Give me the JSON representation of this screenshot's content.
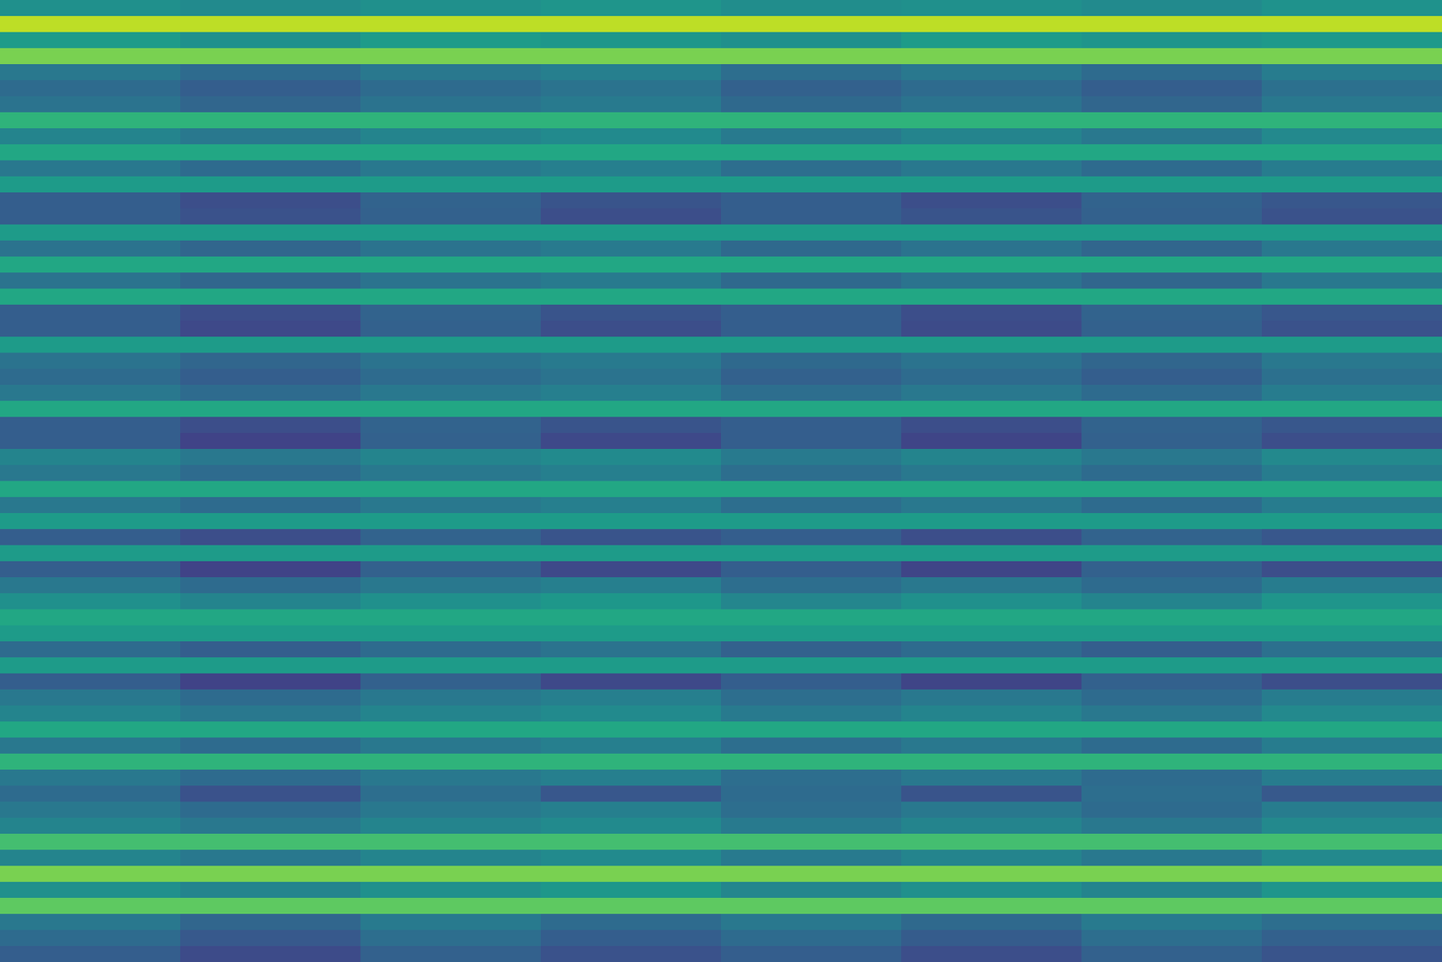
{
  "chart_data": {
    "type": "heatmap",
    "color": "viridis",
    "tick_labels": false,
    "cell_range": [
      0,
      1
    ],
    "cells": [
      [
        0.5,
        0.48,
        0.5,
        0.52,
        0.49,
        0.5,
        0.48,
        0.51
      ],
      [
        0.9,
        0.9,
        0.9,
        0.9,
        0.9,
        0.9,
        0.9,
        0.9
      ],
      [
        0.55,
        0.5,
        0.55,
        0.53,
        0.5,
        0.55,
        0.52,
        0.54
      ],
      [
        0.8,
        0.8,
        0.8,
        0.8,
        0.8,
        0.8,
        0.8,
        0.8
      ],
      [
        0.4,
        0.35,
        0.4,
        0.43,
        0.36,
        0.4,
        0.35,
        0.42
      ],
      [
        0.35,
        0.3,
        0.35,
        0.38,
        0.31,
        0.35,
        0.3,
        0.37
      ],
      [
        0.38,
        0.33,
        0.38,
        0.41,
        0.34,
        0.38,
        0.33,
        0.4
      ],
      [
        0.65,
        0.65,
        0.65,
        0.65,
        0.65,
        0.65,
        0.65,
        0.65
      ],
      [
        0.45,
        0.4,
        0.45,
        0.48,
        0.41,
        0.45,
        0.4,
        0.47
      ],
      [
        0.6,
        0.6,
        0.6,
        0.6,
        0.6,
        0.6,
        0.6,
        0.6
      ],
      [
        0.4,
        0.35,
        0.4,
        0.43,
        0.36,
        0.4,
        0.35,
        0.42
      ],
      [
        0.55,
        0.55,
        0.55,
        0.55,
        0.55,
        0.55,
        0.55,
        0.55
      ],
      [
        0.3,
        0.24,
        0.32,
        0.26,
        0.3,
        0.24,
        0.32,
        0.27
      ],
      [
        0.3,
        0.25,
        0.31,
        0.24,
        0.3,
        0.26,
        0.31,
        0.25
      ],
      [
        0.55,
        0.55,
        0.55,
        0.55,
        0.55,
        0.55,
        0.55,
        0.55
      ],
      [
        0.38,
        0.33,
        0.38,
        0.41,
        0.34,
        0.38,
        0.33,
        0.4
      ],
      [
        0.6,
        0.6,
        0.6,
        0.6,
        0.6,
        0.6,
        0.6,
        0.6
      ],
      [
        0.38,
        0.33,
        0.38,
        0.41,
        0.34,
        0.38,
        0.33,
        0.4
      ],
      [
        0.6,
        0.6,
        0.6,
        0.6,
        0.6,
        0.6,
        0.6,
        0.6
      ],
      [
        0.3,
        0.24,
        0.32,
        0.26,
        0.3,
        0.24,
        0.32,
        0.27
      ],
      [
        0.3,
        0.22,
        0.31,
        0.24,
        0.3,
        0.23,
        0.31,
        0.25
      ],
      [
        0.55,
        0.55,
        0.55,
        0.55,
        0.55,
        0.55,
        0.55,
        0.55
      ],
      [
        0.38,
        0.33,
        0.38,
        0.41,
        0.34,
        0.38,
        0.33,
        0.4
      ],
      [
        0.35,
        0.3,
        0.35,
        0.38,
        0.31,
        0.35,
        0.3,
        0.37
      ],
      [
        0.4,
        0.35,
        0.4,
        0.43,
        0.36,
        0.4,
        0.35,
        0.42
      ],
      [
        0.6,
        0.6,
        0.6,
        0.6,
        0.6,
        0.6,
        0.6,
        0.6
      ],
      [
        0.3,
        0.24,
        0.32,
        0.26,
        0.3,
        0.24,
        0.32,
        0.27
      ],
      [
        0.3,
        0.2,
        0.31,
        0.22,
        0.3,
        0.21,
        0.31,
        0.24
      ],
      [
        0.45,
        0.4,
        0.45,
        0.48,
        0.41,
        0.45,
        0.4,
        0.47
      ],
      [
        0.4,
        0.35,
        0.4,
        0.43,
        0.36,
        0.4,
        0.35,
        0.42
      ],
      [
        0.6,
        0.6,
        0.6,
        0.6,
        0.6,
        0.6,
        0.6,
        0.6
      ],
      [
        0.4,
        0.35,
        0.4,
        0.43,
        0.36,
        0.4,
        0.35,
        0.42
      ],
      [
        0.55,
        0.55,
        0.55,
        0.55,
        0.55,
        0.55,
        0.55,
        0.55
      ],
      [
        0.3,
        0.24,
        0.32,
        0.26,
        0.3,
        0.24,
        0.32,
        0.27
      ],
      [
        0.55,
        0.55,
        0.55,
        0.55,
        0.55,
        0.55,
        0.55,
        0.55
      ],
      [
        0.3,
        0.2,
        0.31,
        0.22,
        0.3,
        0.21,
        0.31,
        0.24
      ],
      [
        0.4,
        0.35,
        0.4,
        0.43,
        0.36,
        0.4,
        0.35,
        0.42
      ],
      [
        0.5,
        0.45,
        0.5,
        0.53,
        0.46,
        0.5,
        0.45,
        0.52
      ],
      [
        0.6,
        0.6,
        0.6,
        0.6,
        0.6,
        0.6,
        0.6,
        0.6
      ],
      [
        0.55,
        0.55,
        0.55,
        0.55,
        0.55,
        0.55,
        0.55,
        0.55
      ],
      [
        0.35,
        0.3,
        0.35,
        0.38,
        0.31,
        0.35,
        0.3,
        0.37
      ],
      [
        0.55,
        0.55,
        0.55,
        0.55,
        0.55,
        0.55,
        0.55,
        0.55
      ],
      [
        0.3,
        0.2,
        0.31,
        0.22,
        0.3,
        0.21,
        0.31,
        0.24
      ],
      [
        0.4,
        0.35,
        0.4,
        0.43,
        0.36,
        0.4,
        0.35,
        0.42
      ],
      [
        0.45,
        0.4,
        0.45,
        0.48,
        0.41,
        0.45,
        0.4,
        0.47
      ],
      [
        0.6,
        0.6,
        0.6,
        0.6,
        0.6,
        0.6,
        0.6,
        0.6
      ],
      [
        0.4,
        0.35,
        0.4,
        0.43,
        0.36,
        0.4,
        0.35,
        0.42
      ],
      [
        0.65,
        0.65,
        0.65,
        0.65,
        0.65,
        0.65,
        0.65,
        0.65
      ],
      [
        0.4,
        0.35,
        0.4,
        0.43,
        0.36,
        0.4,
        0.35,
        0.42
      ],
      [
        0.35,
        0.25,
        0.36,
        0.27,
        0.35,
        0.26,
        0.36,
        0.28
      ],
      [
        0.4,
        0.35,
        0.4,
        0.43,
        0.36,
        0.4,
        0.35,
        0.42
      ],
      [
        0.45,
        0.4,
        0.45,
        0.48,
        0.41,
        0.45,
        0.4,
        0.47
      ],
      [
        0.7,
        0.7,
        0.7,
        0.7,
        0.7,
        0.7,
        0.7,
        0.7
      ],
      [
        0.45,
        0.4,
        0.45,
        0.48,
        0.41,
        0.45,
        0.4,
        0.47
      ],
      [
        0.8,
        0.8,
        0.8,
        0.8,
        0.8,
        0.8,
        0.8,
        0.8
      ],
      [
        0.5,
        0.45,
        0.5,
        0.53,
        0.46,
        0.5,
        0.45,
        0.52
      ],
      [
        0.75,
        0.75,
        0.75,
        0.75,
        0.75,
        0.75,
        0.75,
        0.75
      ],
      [
        0.4,
        0.33,
        0.41,
        0.35,
        0.4,
        0.34,
        0.41,
        0.36
      ],
      [
        0.35,
        0.28,
        0.36,
        0.3,
        0.35,
        0.29,
        0.36,
        0.31
      ],
      [
        0.3,
        0.23,
        0.31,
        0.25,
        0.3,
        0.24,
        0.31,
        0.26
      ]
    ]
  }
}
